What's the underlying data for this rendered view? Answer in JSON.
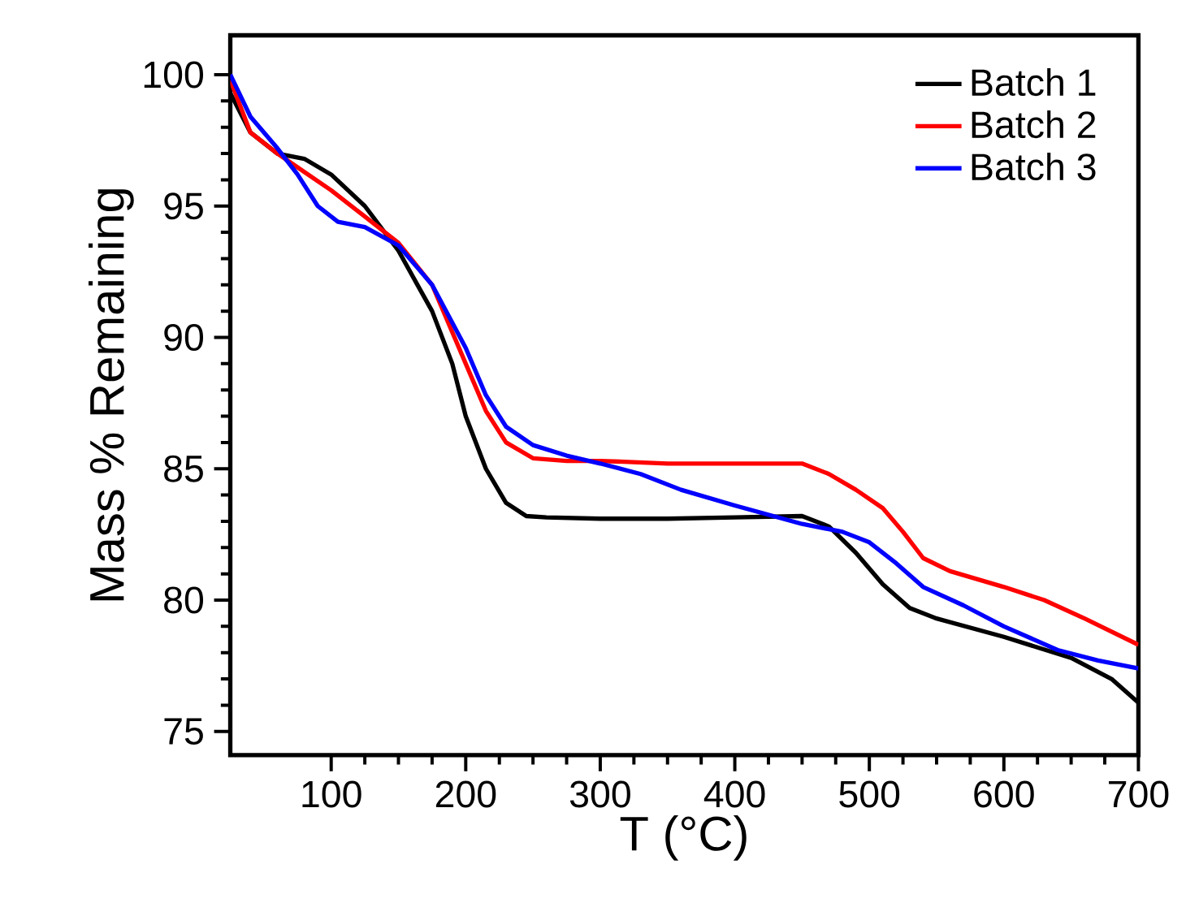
{
  "chart_data": {
    "type": "line",
    "xlabel": "T (°C)",
    "ylabel": "Mass % Remaining",
    "xlim": [
      25,
      700
    ],
    "ylim": [
      74.1,
      101.5
    ],
    "xticks": [
      100,
      200,
      300,
      400,
      500,
      600,
      700
    ],
    "yticks": [
      75,
      80,
      85,
      90,
      95,
      100
    ],
    "legend": "top right",
    "grid": false,
    "marker": "none",
    "line_style": "solid",
    "series": [
      {
        "name": "Batch 1",
        "color": "#000000",
        "x": [
          25,
          40,
          60,
          80,
          100,
          125,
          150,
          175,
          190,
          200,
          215,
          230,
          245,
          260,
          300,
          350,
          400,
          450,
          470,
          490,
          510,
          530,
          550,
          600,
          650,
          680,
          700
        ],
        "values": [
          99.3,
          97.8,
          97.0,
          96.8,
          96.2,
          95.0,
          93.3,
          91.0,
          89.0,
          87.0,
          85.0,
          83.7,
          83.2,
          83.15,
          83.1,
          83.1,
          83.15,
          83.2,
          82.8,
          81.8,
          80.6,
          79.7,
          79.3,
          78.6,
          77.8,
          77.0,
          76.1
        ]
      },
      {
        "name": "Batch 2",
        "color": "#ff0000",
        "x": [
          25,
          40,
          60,
          80,
          100,
          125,
          150,
          175,
          200,
          215,
          230,
          250,
          275,
          300,
          350,
          400,
          450,
          470,
          490,
          510,
          525,
          540,
          560,
          600,
          630,
          660,
          700
        ],
        "values": [
          99.8,
          97.8,
          97.0,
          96.3,
          95.6,
          94.6,
          93.6,
          92.0,
          89.0,
          87.2,
          86.0,
          85.4,
          85.3,
          85.3,
          85.2,
          85.2,
          85.2,
          84.8,
          84.2,
          83.5,
          82.6,
          81.6,
          81.1,
          80.5,
          80.0,
          79.3,
          78.3
        ]
      },
      {
        "name": "Batch 3",
        "color": "#0000ff",
        "x": [
          25,
          40,
          60,
          75,
          90,
          105,
          125,
          150,
          175,
          200,
          215,
          230,
          250,
          275,
          300,
          330,
          360,
          400,
          450,
          480,
          500,
          520,
          540,
          570,
          600,
          640,
          670,
          700
        ],
        "values": [
          100.0,
          98.4,
          97.2,
          96.2,
          95.0,
          94.4,
          94.2,
          93.5,
          92.0,
          89.6,
          87.8,
          86.6,
          85.9,
          85.5,
          85.2,
          84.8,
          84.2,
          83.6,
          82.9,
          82.6,
          82.2,
          81.4,
          80.5,
          79.8,
          79.0,
          78.1,
          77.7,
          77.4
        ]
      }
    ]
  }
}
